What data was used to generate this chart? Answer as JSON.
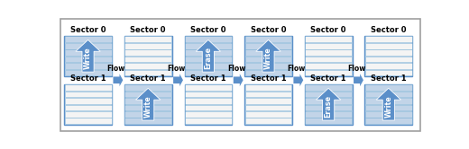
{
  "fig_width": 5.2,
  "fig_height": 1.66,
  "dpi": 100,
  "bg_color": "#ffffff",
  "outer_border_color": "#a0a0a0",
  "border_color": "#5b8fc9",
  "arrow_color": "#5b8fc9",
  "label_color": "#000000",
  "flow_arrow_color": "#5b8fc9",
  "num_columns": 6,
  "sector0_labels": [
    "Sector 0",
    "Sector 0",
    "Sector 0",
    "Sector 0",
    "Sector 0",
    "Sector 0"
  ],
  "sector1_labels": [
    "Sector 1",
    "Sector 1",
    "Sector 1",
    "Sector 1",
    "Sector 1",
    "Sector 1"
  ],
  "arrow_labels_s0": [
    "Write",
    null,
    "Erase",
    "Write",
    null,
    null
  ],
  "arrow_labels_s1": [
    null,
    "Write",
    null,
    null,
    "Erase",
    "Write"
  ],
  "flow_labels": [
    "Flow",
    "Flow",
    "Flow",
    "Flow",
    "Flow"
  ],
  "num_stripes": 6,
  "stripe_filled_color": "#c2d4e8",
  "stripe_empty_color": "#f4f4f4",
  "stripe_border_color": "#7bafd4"
}
